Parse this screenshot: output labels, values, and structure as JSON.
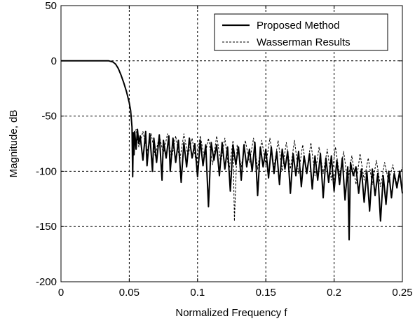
{
  "chart_data": {
    "type": "line",
    "xlabel": "Normalized Frequency f",
    "ylabel": "Magnitude, dB",
    "xlim": [
      0,
      0.25
    ],
    "ylim": [
      -200,
      50
    ],
    "xticks": [
      0,
      0.05,
      0.1,
      0.15,
      0.2,
      0.25
    ],
    "xtick_labels": [
      "0",
      "0.05",
      "0.1",
      "0.15",
      "0.2",
      "0.25"
    ],
    "yticks": [
      -200,
      -150,
      -100,
      -50,
      0,
      50
    ],
    "ytick_labels": [
      "-200",
      "-150",
      "-100",
      "-50",
      "0",
      "50"
    ],
    "grid": true,
    "legend": {
      "placement": "top-right"
    },
    "series": [
      {
        "name": "Proposed Method",
        "style": "solid",
        "color": "#000000",
        "x": [
          0,
          0.035,
          0.038,
          0.04,
          0.042,
          0.044,
          0.046,
          0.048,
          0.05,
          0.051,
          0.052,
          0.0525,
          0.053,
          0.0535,
          0.054,
          0.055,
          0.056,
          0.057,
          0.058,
          0.06,
          0.062,
          0.063,
          0.065,
          0.067,
          0.068,
          0.07,
          0.072,
          0.074,
          0.075,
          0.077,
          0.079,
          0.08,
          0.082,
          0.084,
          0.086,
          0.088,
          0.09,
          0.092,
          0.094,
          0.096,
          0.098,
          0.1,
          0.102,
          0.104,
          0.106,
          0.108,
          0.11,
          0.112,
          0.114,
          0.116,
          0.118,
          0.12,
          0.122,
          0.124,
          0.126,
          0.128,
          0.13,
          0.132,
          0.134,
          0.136,
          0.138,
          0.14,
          0.142,
          0.144,
          0.146,
          0.148,
          0.15,
          0.152,
          0.154,
          0.156,
          0.158,
          0.16,
          0.162,
          0.164,
          0.166,
          0.168,
          0.17,
          0.172,
          0.174,
          0.176,
          0.178,
          0.18,
          0.182,
          0.184,
          0.186,
          0.188,
          0.19,
          0.192,
          0.194,
          0.196,
          0.198,
          0.2,
          0.202,
          0.204,
          0.206,
          0.208,
          0.21,
          0.211,
          0.212,
          0.214,
          0.216,
          0.218,
          0.22,
          0.222,
          0.224,
          0.226,
          0.228,
          0.23,
          0.232,
          0.234,
          0.236,
          0.238,
          0.24,
          0.242,
          0.244,
          0.246,
          0.248,
          0.25
        ],
        "y": [
          0,
          0,
          -1,
          -3,
          -7,
          -13,
          -20,
          -28,
          -38,
          -45,
          -60,
          -105,
          -65,
          -85,
          -64,
          -80,
          -62,
          -75,
          -68,
          -90,
          -64,
          -95,
          -66,
          -100,
          -70,
          -92,
          -67,
          -108,
          -72,
          -88,
          -68,
          -100,
          -70,
          -92,
          -72,
          -110,
          -74,
          -96,
          -70,
          -88,
          -75,
          -105,
          -72,
          -95,
          -76,
          -132,
          -74,
          -90,
          -76,
          -104,
          -74,
          -98,
          -78,
          -118,
          -76,
          -94,
          -78,
          -108,
          -76,
          -96,
          -80,
          -100,
          -74,
          -122,
          -78,
          -96,
          -80,
          -106,
          -78,
          -102,
          -82,
          -112,
          -80,
          -98,
          -82,
          -120,
          -84,
          -104,
          -82,
          -114,
          -86,
          -102,
          -84,
          -116,
          -86,
          -108,
          -84,
          -124,
          -88,
          -110,
          -86,
          -118,
          -90,
          -112,
          -88,
          -126,
          -96,
          -162,
          -92,
          -104,
          -96,
          -120,
          -98,
          -128,
          -100,
          -136,
          -98,
          -122,
          -102,
          -145,
          -104,
          -130,
          -100,
          -124,
          -102,
          -115,
          -100,
          -120
        ]
      },
      {
        "name": "Wasserman Results",
        "style": "dashed",
        "color": "#000000",
        "x": [
          0,
          0.035,
          0.038,
          0.04,
          0.042,
          0.044,
          0.046,
          0.048,
          0.05,
          0.051,
          0.052,
          0.053,
          0.055,
          0.057,
          0.06,
          0.063,
          0.066,
          0.069,
          0.072,
          0.075,
          0.078,
          0.081,
          0.084,
          0.087,
          0.09,
          0.093,
          0.096,
          0.099,
          0.102,
          0.105,
          0.108,
          0.111,
          0.114,
          0.117,
          0.12,
          0.123,
          0.126,
          0.127,
          0.129,
          0.132,
          0.135,
          0.138,
          0.141,
          0.144,
          0.147,
          0.15,
          0.153,
          0.156,
          0.159,
          0.162,
          0.165,
          0.168,
          0.171,
          0.174,
          0.177,
          0.18,
          0.183,
          0.186,
          0.189,
          0.192,
          0.195,
          0.198,
          0.201,
          0.204,
          0.207,
          0.21,
          0.213,
          0.216,
          0.219,
          0.222,
          0.225,
          0.228,
          0.231,
          0.234,
          0.237,
          0.24,
          0.243,
          0.246,
          0.25
        ],
        "y": [
          0,
          0,
          -1,
          -3,
          -7,
          -13,
          -20,
          -28,
          -38,
          -46,
          -58,
          -70,
          -62,
          -78,
          -64,
          -82,
          -66,
          -86,
          -68,
          -84,
          -66,
          -88,
          -68,
          -90,
          -66,
          -86,
          -70,
          -92,
          -68,
          -88,
          -70,
          -94,
          -68,
          -92,
          -70,
          -100,
          -72,
          -145,
          -76,
          -96,
          -72,
          -92,
          -70,
          -98,
          -72,
          -94,
          -70,
          -96,
          -72,
          -100,
          -74,
          -98,
          -72,
          -102,
          -76,
          -100,
          -74,
          -104,
          -78,
          -102,
          -80,
          -108,
          -78,
          -104,
          -82,
          -110,
          -86,
          -112,
          -84,
          -108,
          -88,
          -112,
          -90,
          -114,
          -92,
          -110,
          -94,
          -112,
          -96
        ]
      }
    ]
  }
}
